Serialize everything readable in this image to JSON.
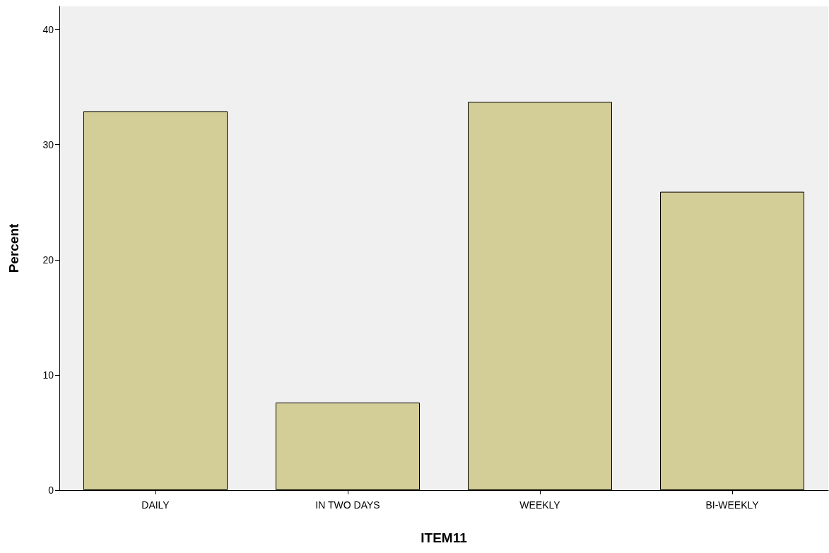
{
  "chart_data": {
    "type": "bar",
    "xlabel": "ITEM11",
    "ylabel": "Percent",
    "categories": [
      "DAILY",
      "IN TWO DAYS",
      "WEEKLY",
      "BI-WEEKLY"
    ],
    "values": [
      32.9,
      7.6,
      33.7,
      25.9
    ],
    "color": "#d3cd97",
    "ylim": [
      0,
      42
    ],
    "yticks": [
      0,
      10,
      20,
      30,
      40
    ],
    "grid": false
  }
}
